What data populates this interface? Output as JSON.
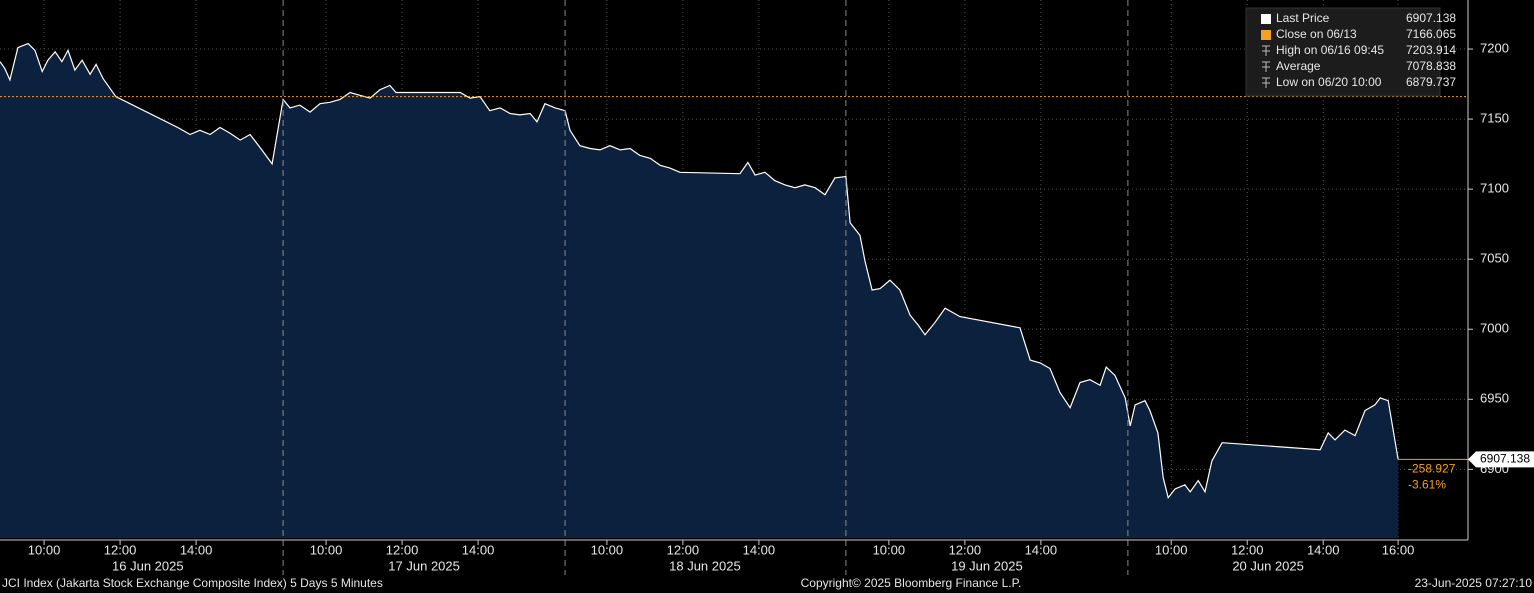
{
  "chart_data": {
    "type": "area",
    "title": "JCI Index (Jakarta Stock Exchange Composite Index) 5 Days 5 Minutes",
    "copyright": "Copyright© 2025 Bloomberg Finance L.P.",
    "timestamp": "23-Jun-2025 07:27:10",
    "xlim": [
      0,
      38.63
    ],
    "ylim": [
      6851,
      7235
    ],
    "yticks": [
      6900,
      6950,
      7000,
      7050,
      7100,
      7150,
      7200
    ],
    "xticks": [
      {
        "value": 1.16,
        "label": "10:00"
      },
      {
        "value": 3.16,
        "label": "12:00"
      },
      {
        "value": 5.16,
        "label": "14:00"
      },
      {
        "value": 8.58,
        "label": "10:00"
      },
      {
        "value": 10.58,
        "label": "12:00"
      },
      {
        "value": 12.58,
        "label": "14:00"
      },
      {
        "value": 15.97,
        "label": "10:00"
      },
      {
        "value": 17.97,
        "label": "12:00"
      },
      {
        "value": 19.97,
        "label": "14:00"
      },
      {
        "value": 23.39,
        "label": "10:00"
      },
      {
        "value": 25.39,
        "label": "12:00"
      },
      {
        "value": 27.39,
        "label": "14:00"
      },
      {
        "value": 30.82,
        "label": "10:00"
      },
      {
        "value": 32.82,
        "label": "12:00"
      },
      {
        "value": 34.82,
        "label": "14:00"
      },
      {
        "value": 36.79,
        "label": "16:00"
      }
    ],
    "day_labels": [
      {
        "value": 3.89,
        "label": "16 Jun 2025"
      },
      {
        "value": 11.16,
        "label": "17 Jun 2025"
      },
      {
        "value": 18.55,
        "label": "18 Jun 2025"
      },
      {
        "value": 25.97,
        "label": "19 Jun 2025"
      },
      {
        "value": 33.37,
        "label": "20 Jun 2025"
      }
    ],
    "day_breaks": [
      7.45,
      14.87,
      22.26,
      29.68
    ],
    "grid": true,
    "legend": [
      {
        "label": "Last Price",
        "value": 6907.138,
        "color": "#ffffff"
      },
      {
        "label": "Close on 06/13",
        "value": 7166.065,
        "color": "#f4a021"
      },
      {
        "label": "High on 06/16 09:45",
        "value": 7203.914,
        "color": "#bbbbbb"
      },
      {
        "label": "Average",
        "value": 7078.838,
        "color": "#bbbbbb"
      },
      {
        "label": "Low on 06/20 10:00",
        "value": 6879.737,
        "color": "#bbbbbb"
      }
    ],
    "change": -258.927,
    "change_pct": {
      "value": -3.61,
      "label": "-3.61%"
    },
    "series": [
      {
        "name": "Last Price",
        "color": "#ffffff",
        "fill": "#0c213d",
        "x": [
          0,
          0.13,
          0.26,
          0.47,
          0.74,
          0.92,
          1.11,
          1.26,
          1.45,
          1.63,
          1.79,
          1.97,
          2.16,
          2.37,
          2.53,
          2.71,
          3.05,
          4.68,
          5,
          5.26,
          5.53,
          5.79,
          6.05,
          6.32,
          6.58,
          6.89,
          7.16,
          7.45,
          7.63,
          7.89,
          8.16,
          8.42,
          8.68,
          8.95,
          9.21,
          9.47,
          9.74,
          10,
          10.26,
          10.42,
          11.05,
          12.11,
          12.37,
          12.63,
          12.89,
          13.16,
          13.42,
          13.68,
          13.95,
          14.13,
          14.34,
          14.61,
          14.87,
          15,
          15.26,
          15.53,
          15.79,
          16.05,
          16.32,
          16.58,
          16.84,
          17.11,
          17.37,
          17.63,
          17.89,
          19.47,
          19.68,
          19.87,
          20.13,
          20.39,
          20.66,
          20.92,
          21.18,
          21.45,
          21.71,
          21.97,
          22.26,
          22.37,
          22.63,
          22.76,
          22.95,
          23.16,
          23.42,
          23.68,
          23.95,
          24.16,
          24.34,
          24.61,
          24.87,
          25.26,
          26.84,
          27.11,
          27.37,
          27.63,
          27.89,
          28.16,
          28.42,
          28.68,
          28.95,
          29.11,
          29.34,
          29.61,
          29.74,
          29.87,
          30.13,
          30.26,
          30.47,
          30.61,
          30.74,
          30.92,
          31.18,
          31.32,
          31.53,
          31.71,
          31.89,
          32.16,
          34.74,
          34.95,
          35.13,
          35.39,
          35.66,
          35.92,
          36.18,
          36.32,
          36.53,
          36.79
        ],
        "values": [
          7191,
          7186,
          7178,
          7201,
          7203.914,
          7199,
          7184,
          7192,
          7198,
          7191,
          7199,
          7185,
          7192,
          7182,
          7189,
          7179,
          7166,
          7144,
          7139,
          7142,
          7139,
          7144,
          7140,
          7135,
          7139,
          7128,
          7118,
          7164,
          7158,
          7160,
          7155,
          7161,
          7162,
          7164,
          7169,
          7167,
          7165,
          7171,
          7174,
          7169,
          7169,
          7169,
          7165,
          7166,
          7156,
          7158,
          7154,
          7153,
          7154,
          7148,
          7161,
          7158,
          7156,
          7142,
          7131,
          7129,
          7128,
          7131,
          7128,
          7129,
          7124,
          7122,
          7117,
          7115,
          7112,
          7111,
          7119,
          7110,
          7112,
          7106,
          7103,
          7101,
          7103,
          7101,
          7096,
          7108,
          7109,
          7076,
          7067,
          7049,
          7028,
          7029,
          7035,
          7028,
          7010,
          7003,
          6996,
          7005,
          7015,
          7009,
          7001,
          6978,
          6976,
          6972,
          6955,
          6944,
          6962,
          6964,
          6960,
          6973,
          6967,
          6951,
          6931,
          6946,
          6949,
          6942,
          6926,
          6894,
          6879.737,
          6886,
          6889,
          6884,
          6892,
          6884,
          6906,
          6919,
          6914,
          6926,
          6921,
          6928,
          6924,
          6942,
          6946,
          6951,
          6949,
          6907.138
        ]
      }
    ]
  }
}
